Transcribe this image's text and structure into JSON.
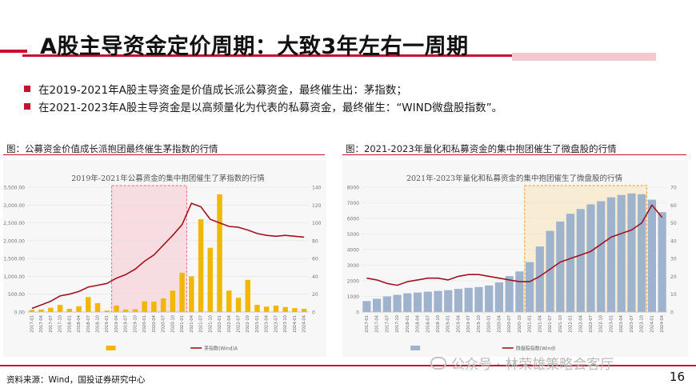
{
  "header": {
    "title": "A股主导资金定价周期：大致3年左右一周期"
  },
  "bullets": [
    "在2019-2021年A股主导资金是价值成长派公募资金，最终催生出：茅指数；",
    "在2021-2023年A股主导资金是以高频量化为代表的私募资金，最终催生：“WIND微盘股指数”。"
  ],
  "colors": {
    "accent": "#c8102e",
    "bar_gold": "#f2b705",
    "line_red": "#a3121e",
    "bar_blue": "#9fb3cc",
    "highlight_pink": "#f7c6d0",
    "highlight_orange": "#fbe3b9"
  },
  "captions": {
    "left": "图：公募资金价值成长派抱团最终催生茅指数的行情",
    "right": "图：2021-2023年量化和私募资金的集中抱团催生了微盘股的行情"
  },
  "footer": {
    "source": "资料来源：Wind，国投证券研究中心",
    "page": "16",
    "watermark": "公众号 · 林荣雄策略会客厅"
  },
  "chart_data": [
    {
      "type": "bar",
      "title": "2019年-2021年公募资金的集中抱团催生了茅指数的行情",
      "categories": [
        "2017-01",
        "2017-04",
        "2017-07",
        "2017-10",
        "2018-01",
        "2018-04",
        "2018-07",
        "2018-10",
        "2019-01",
        "2019-04",
        "2019-07",
        "2019-10",
        "2020-01",
        "2020-04",
        "2020-07",
        "2020-10",
        "2021-01",
        "2021-04",
        "2021-07",
        "2021-10",
        "2022-01",
        "2022-04",
        "2022-07",
        "2022-10",
        "2023-01",
        "2023-04",
        "2023-07",
        "2023-10",
        "2024-01",
        "2024-04"
      ],
      "y_left_ticks": [
        "0.00",
        "500.00",
        "1,000.00",
        "1,500.00",
        "2,000.00",
        "2,500.00",
        "3,000.00",
        "3,500.00"
      ],
      "y_right_ticks": [
        "0",
        "20",
        "40",
        "60",
        "80",
        "100",
        "120",
        "140"
      ],
      "ylim_left": [
        0,
        3500
      ],
      "ylim_right": [
        0,
        140
      ],
      "series": [
        {
          "kind": "bar",
          "axis": "left",
          "values": [
            60,
            70,
            120,
            200,
            90,
            160,
            420,
            250,
            40,
            180,
            70,
            80,
            300,
            290,
            380,
            600,
            1100,
            1000,
            2600,
            1800,
            3300,
            600,
            400,
            900,
            200,
            150,
            180,
            140,
            110,
            90
          ]
        },
        {
          "kind": "line",
          "axis": "right",
          "name": "茅指数(Wind)A",
          "values": [
            4,
            8,
            12,
            18,
            20,
            23,
            28,
            30,
            32,
            38,
            42,
            48,
            57,
            64,
            75,
            86,
            98,
            122,
            118,
            104,
            100,
            96,
            95,
            92,
            88,
            86,
            85,
            86,
            85,
            84
          ]
        }
      ],
      "highlight_range": [
        "2019-04",
        "2021-01"
      ]
    },
    {
      "type": "bar",
      "title": "2021年-2023年量化和私募资金的集中抱团催生了微盘股的行情",
      "categories": [
        "2017-01",
        "2017-04",
        "2017-07",
        "2017-10",
        "2018-01",
        "2018-04",
        "2018-07",
        "2018-10",
        "2019-01",
        "2019-04",
        "2019-07",
        "2019-10",
        "2020-01",
        "2020-04",
        "2020-07",
        "2020-10",
        "2021-01",
        "2021-04",
        "2021-07",
        "2021-10",
        "2022-01",
        "2022-04",
        "2022-07",
        "2022-10",
        "2023-01",
        "2023-04",
        "2023-07",
        "2023-10",
        "2024-01",
        "2024-04"
      ],
      "y_left_ticks": [
        "0",
        "1000",
        "2000",
        "3000",
        "4000",
        "5000",
        "6000",
        "7000",
        "8000"
      ],
      "y_right_ticks": [
        "0",
        "10",
        "20",
        "30",
        "40",
        "50",
        "60",
        "70"
      ],
      "ylim_left": [
        0,
        8000
      ],
      "ylim_right": [
        0,
        70
      ],
      "series": [
        {
          "kind": "bar",
          "axis": "left",
          "values": [
            700,
            850,
            1000,
            1100,
            1200,
            1250,
            1300,
            1350,
            1400,
            1480,
            1550,
            1600,
            1700,
            1900,
            2300,
            2600,
            3200,
            4200,
            5200,
            5800,
            6300,
            6600,
            6900,
            7100,
            7350,
            7500,
            7600,
            7550,
            7200,
            6400
          ]
        },
        {
          "kind": "line",
          "axis": "right",
          "name": "微盘股指数(Wind)",
          "values": [
            19,
            18,
            16,
            15,
            17,
            18,
            19,
            19,
            18,
            20,
            21,
            21,
            20,
            19,
            18,
            17,
            17,
            20,
            24,
            28,
            30,
            32,
            34,
            38,
            42,
            44,
            46,
            50,
            60,
            53
          ]
        }
      ],
      "highlight_range": [
        "2021-01",
        "2023-10"
      ]
    }
  ]
}
